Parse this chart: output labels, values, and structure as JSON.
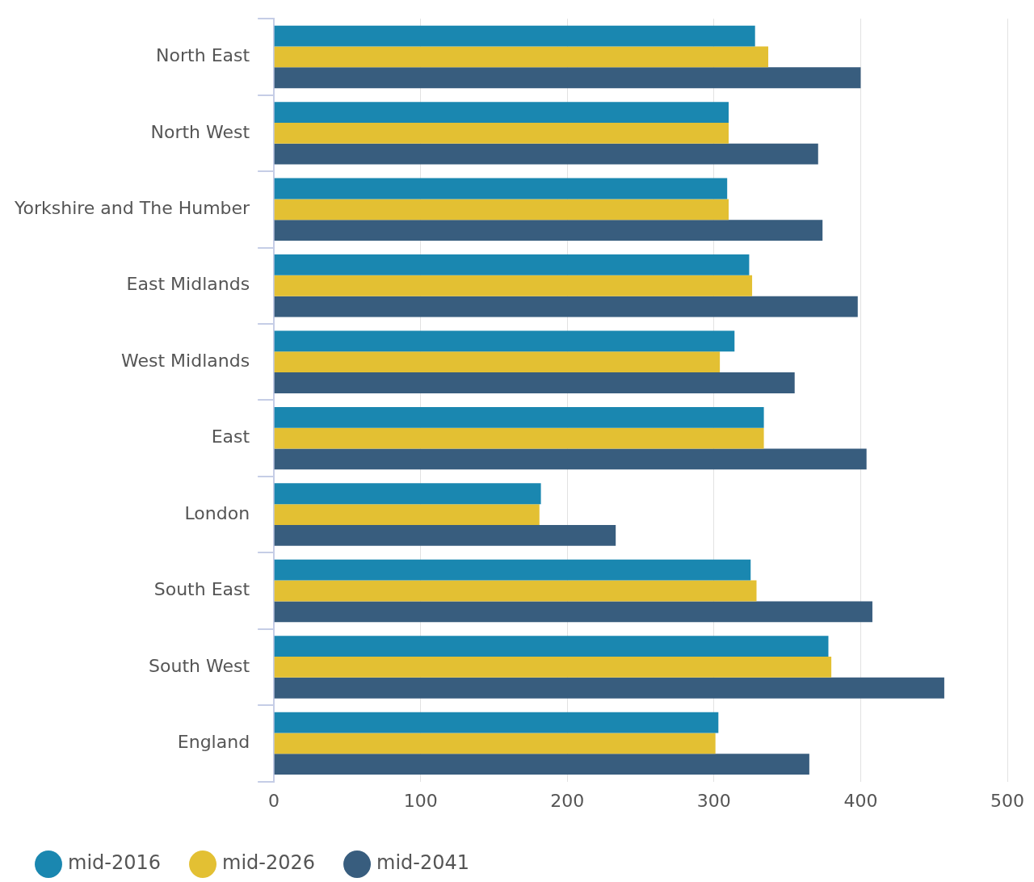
{
  "chart_data": {
    "type": "bar",
    "orientation": "horizontal",
    "categories": [
      "North East",
      "North West",
      "Yorkshire and The Humber",
      "East Midlands",
      "West Midlands",
      "East",
      "London",
      "South East",
      "South West",
      "England"
    ],
    "series": [
      {
        "name": "mid-2016",
        "color": "#1a87b0",
        "values": [
          328,
          310,
          309,
          324,
          314,
          334,
          182,
          325,
          378,
          303
        ]
      },
      {
        "name": "mid-2026",
        "color": "#e3c033",
        "values": [
          337,
          310,
          310,
          326,
          304,
          334,
          181,
          329,
          380,
          301
        ]
      },
      {
        "name": "mid-2041",
        "color": "#385d7e",
        "values": [
          400,
          371,
          374,
          398,
          355,
          404,
          233,
          408,
          457,
          365
        ]
      }
    ],
    "xlim": [
      0,
      500
    ],
    "xticks": [
      0,
      100,
      200,
      300,
      400,
      500
    ],
    "grid": "x",
    "legend": "bottom left",
    "marker": "circle"
  }
}
